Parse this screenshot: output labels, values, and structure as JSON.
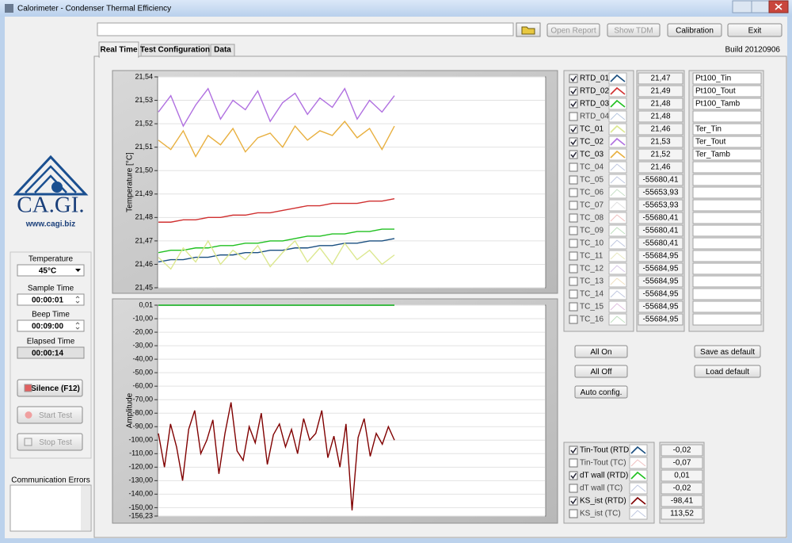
{
  "window": {
    "title": "Calorimeter - Condenser  Thermal Efficiency"
  },
  "toolbar": {
    "buttons": [
      "Open Report",
      "Show TDM",
      "Calibration",
      "Exit"
    ]
  },
  "tabs": [
    "Real Time",
    "Test Configuration",
    "Data"
  ],
  "build": "Build 20120906",
  "logo": {
    "name": "CA.GI.",
    "url": "www.cagi.biz"
  },
  "controls": {
    "fields": [
      {
        "label": "Temperature",
        "value": "45°C"
      },
      {
        "label": "Sample Time",
        "value": "00:00:01"
      },
      {
        "label": "Beep Time",
        "value": "00:09:00"
      },
      {
        "label": "Elapsed Time",
        "value": "00:00:14"
      }
    ],
    "buttons": [
      "Silence (F12)",
      "Start Test",
      "Stop Test"
    ]
  },
  "communication_errors": {
    "label": "Communication Errors"
  },
  "temperature_chart": {
    "ylabel": "Temperature [°C]",
    "ylim": [
      21.45,
      21.54
    ],
    "yticks": [
      {
        "value": 21.54,
        "label": "21,54"
      },
      {
        "value": 21.53,
        "label": "21,53"
      },
      {
        "value": 21.52,
        "label": "21,52"
      },
      {
        "value": 21.51,
        "label": "21,51"
      },
      {
        "value": 21.5,
        "label": "21,50"
      },
      {
        "value": 21.49,
        "label": "21,49"
      },
      {
        "value": 21.48,
        "label": "21,48"
      },
      {
        "value": 21.47,
        "label": "21,47"
      },
      {
        "value": 21.46,
        "label": "21,46"
      },
      {
        "value": 21.45,
        "label": "21,45"
      }
    ]
  },
  "amplitude_chart": {
    "ylabel": "Amplitude",
    "ylim": [
      -156.23,
      0.01
    ],
    "yticks": [
      {
        "value": 0.01,
        "label": "0,01"
      },
      {
        "value": -10,
        "label": "-10,00"
      },
      {
        "value": -20,
        "label": "-20,00"
      },
      {
        "value": -30,
        "label": "-30,00"
      },
      {
        "value": -40,
        "label": "-40,00"
      },
      {
        "value": -50,
        "label": "-50,00"
      },
      {
        "value": -60,
        "label": "-60,00"
      },
      {
        "value": -70,
        "label": "-70,00"
      },
      {
        "value": -80,
        "label": "-80,00"
      },
      {
        "value": -90,
        "label": "-90,00"
      },
      {
        "value": -100,
        "label": "-100,00"
      },
      {
        "value": -110,
        "label": "-110,00"
      },
      {
        "value": -120,
        "label": "-120,00"
      },
      {
        "value": -130,
        "label": "-130,00"
      },
      {
        "value": -140,
        "label": "-140,00"
      },
      {
        "value": -150,
        "label": "-150,00"
      },
      {
        "value": -156.23,
        "label": "-156,23"
      }
    ]
  },
  "channels": [
    {
      "name": "RTD_01",
      "checked": true,
      "color": "#1a4f80",
      "value": "21,47",
      "label": "Pt100_Tin",
      "trace": [
        21.461,
        21.462,
        21.462,
        21.463,
        21.463,
        21.464,
        21.464,
        21.465,
        21.465,
        21.466,
        21.466,
        21.467,
        21.467,
        21.468,
        21.468,
        21.469,
        21.469,
        21.47,
        21.47,
        21.471
      ]
    },
    {
      "name": "RTD_02",
      "checked": true,
      "color": "#d03030",
      "value": "21,49",
      "label": "Pt100_Tout",
      "trace": [
        21.478,
        21.478,
        21.479,
        21.479,
        21.48,
        21.48,
        21.481,
        21.481,
        21.482,
        21.482,
        21.483,
        21.484,
        21.485,
        21.485,
        21.486,
        21.486,
        21.486,
        21.487,
        21.487,
        21.488
      ]
    },
    {
      "name": "RTD_03",
      "checked": true,
      "color": "#20c020",
      "value": "21,48",
      "label": "Pt100_Tamb",
      "trace": [
        21.465,
        21.466,
        21.466,
        21.467,
        21.467,
        21.468,
        21.468,
        21.469,
        21.469,
        21.47,
        21.47,
        21.471,
        21.472,
        21.472,
        21.473,
        21.473,
        21.474,
        21.474,
        21.475,
        21.475
      ]
    },
    {
      "name": "RTD_04",
      "checked": false,
      "color": "#b8c8e0",
      "value": "21,48"
    },
    {
      "name": "TC_01",
      "checked": true,
      "color": "#dce890",
      "value": "21,46",
      "label": "Ter_Tin",
      "trace": [
        21.463,
        21.458,
        21.467,
        21.461,
        21.47,
        21.46,
        21.466,
        21.462,
        21.468,
        21.459,
        21.465,
        21.47,
        21.461,
        21.467,
        21.46,
        21.469,
        21.462,
        21.466,
        21.46,
        21.464
      ]
    },
    {
      "name": "TC_02",
      "checked": true,
      "color": "#b070e0",
      "value": "21,53",
      "label": "Ter_Tout",
      "trace": [
        21.525,
        21.532,
        21.519,
        21.528,
        21.535,
        21.522,
        21.53,
        21.526,
        21.534,
        21.521,
        21.529,
        21.533,
        21.524,
        21.531,
        21.527,
        21.535,
        21.522,
        21.53,
        21.525,
        21.532
      ]
    },
    {
      "name": "TC_03",
      "checked": true,
      "color": "#e8b040",
      "value": "21,52",
      "label": "Ter_Tamb",
      "trace": [
        21.513,
        21.509,
        21.517,
        21.506,
        21.515,
        21.511,
        21.518,
        21.508,
        21.514,
        21.516,
        21.51,
        21.519,
        21.513,
        21.517,
        21.515,
        21.521,
        21.514,
        21.518,
        21.509,
        21.519
      ]
    },
    {
      "name": "TC_04",
      "checked": false,
      "color": "#c0c8e0",
      "value": "21,46"
    },
    {
      "name": "TC_05",
      "checked": false,
      "color": "#c0c8e0",
      "value": "-55680,41"
    },
    {
      "name": "TC_06",
      "checked": false,
      "color": "#c8e0c8",
      "value": "-55653,93"
    },
    {
      "name": "TC_07",
      "checked": false,
      "color": "#e0e0e0",
      "value": "-55653,93"
    },
    {
      "name": "TC_08",
      "checked": false,
      "color": "#f0c0c0",
      "value": "-55680,41"
    },
    {
      "name": "TC_09",
      "checked": false,
      "color": "#c0e0c0",
      "value": "-55680,41"
    },
    {
      "name": "TC_10",
      "checked": false,
      "color": "#c0c8e0",
      "value": "-55680,41"
    },
    {
      "name": "TC_11",
      "checked": false,
      "color": "#e8e8c0",
      "value": "-55684,95"
    },
    {
      "name": "TC_12",
      "checked": false,
      "color": "#d8c8e8",
      "value": "-55684,95"
    },
    {
      "name": "TC_13",
      "checked": false,
      "color": "#f0e0c0",
      "value": "-55684,95"
    },
    {
      "name": "TC_14",
      "checked": false,
      "color": "#c0c8e0",
      "value": "-55684,95"
    },
    {
      "name": "TC_15",
      "checked": false,
      "color": "#e0c0e0",
      "value": "-55684,95"
    },
    {
      "name": "TC_16",
      "checked": false,
      "color": "#c0e0c0",
      "value": "-55684,95"
    }
  ],
  "channel_buttons": [
    "All On",
    "All Off",
    "Auto config.",
    "Save as default",
    "Load default"
  ],
  "derived": [
    {
      "name": "Tin-Tout (RTD)",
      "checked": true,
      "color": "#1a4f80",
      "value": "-0,02",
      "trace": [
        -0.02,
        -0.02
      ]
    },
    {
      "name": "Tin-Tout (TC)",
      "checked": false,
      "color": "#f0c0c0",
      "value": "-0,07"
    },
    {
      "name": "dT wall (RTD)",
      "checked": true,
      "color": "#20c020",
      "value": "0,01",
      "trace": [
        0.01,
        0.01
      ]
    },
    {
      "name": "dT wall (TC)",
      "checked": false,
      "color": "#c0c8e0",
      "value": "-0,02"
    },
    {
      "name": "KS_ist (RTD)",
      "checked": true,
      "color": "#800000",
      "value": "-98,41",
      "trace": [
        -95,
        -120,
        -88,
        -105,
        -130,
        -92,
        -78,
        -110,
        -100,
        -85,
        -125,
        -95,
        -72,
        -108,
        -115,
        -90,
        -102,
        -80,
        -118,
        -96,
        -88,
        -105,
        -92,
        -110,
        -84,
        -100,
        -95,
        -78,
        -113,
        -97,
        -120,
        -88,
        -152,
        -98,
        -84,
        -112,
        -95,
        -103,
        -90,
        -100
      ]
    },
    {
      "name": "KS_ist (TC)",
      "checked": false,
      "color": "#c0c8e0",
      "value": "113,52"
    }
  ]
}
